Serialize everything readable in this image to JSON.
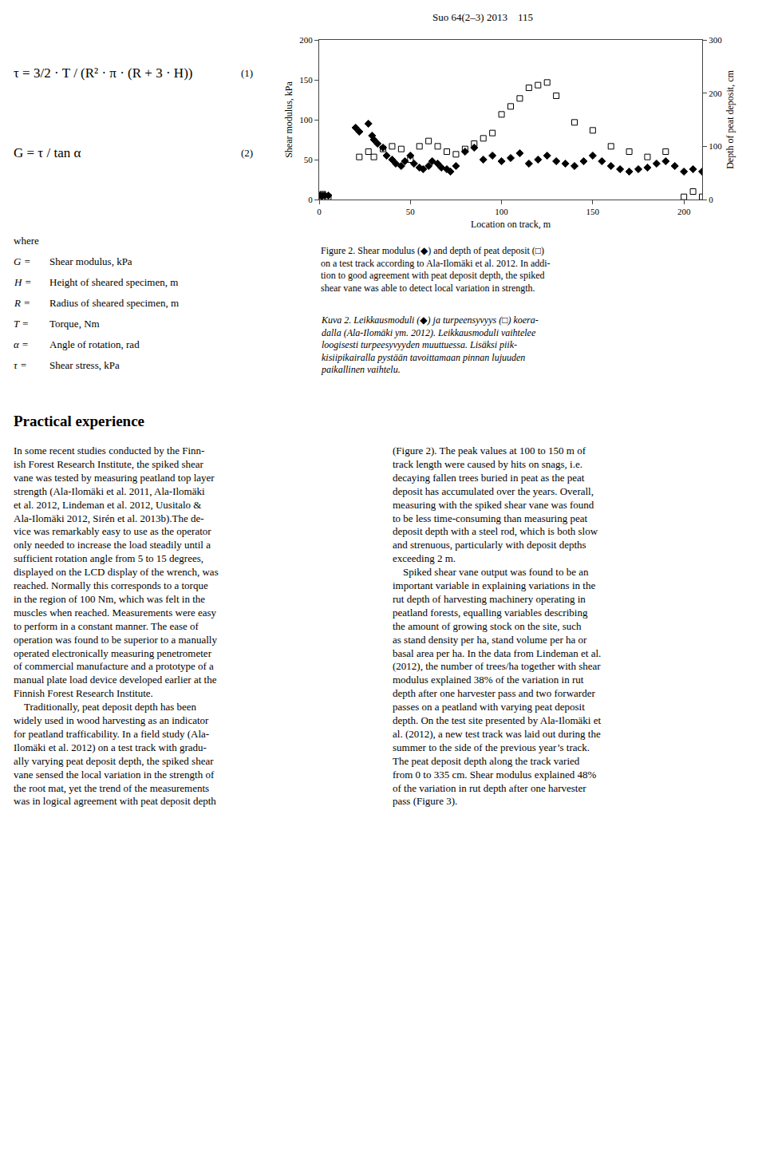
{
  "chart_data": {
    "type": "scatter",
    "xlabel": "Location on track, m",
    "ylabel": "Shear modulus, kPa",
    "y2label": "Depth of peat deposit, cm",
    "xlim": [
      0,
      210
    ],
    "ylim": [
      0,
      200
    ],
    "y2lim": [
      0,
      300
    ],
    "xticks": [
      0,
      50,
      100,
      150,
      200
    ],
    "yticks": [
      0,
      50,
      100,
      150,
      200
    ],
    "y2ticks": [
      0,
      100,
      200,
      300
    ],
    "grid": false,
    "series": [
      {
        "x": [
          0,
          1,
          2,
          3,
          5,
          20,
          22,
          27,
          29,
          30,
          32,
          35,
          37,
          40,
          42,
          45,
          47,
          50,
          52,
          55,
          57,
          60,
          62,
          65,
          67,
          70,
          72,
          75,
          80,
          85,
          90,
          95,
          100,
          105,
          110,
          115,
          120,
          125,
          130,
          135,
          140,
          145,
          150,
          155,
          160,
          165,
          170,
          175,
          180,
          185,
          190,
          195,
          200,
          205,
          210
        ],
        "values": [
          5,
          5,
          5,
          5,
          5,
          90,
          85,
          95,
          80,
          75,
          70,
          65,
          55,
          50,
          45,
          42,
          48,
          55,
          45,
          40,
          38,
          42,
          48,
          45,
          40,
          38,
          35,
          42,
          60,
          65,
          50,
          55,
          48,
          52,
          58,
          45,
          50,
          55,
          48,
          45,
          42,
          48,
          55,
          48,
          42,
          38,
          35,
          38,
          40,
          45,
          48,
          42,
          35,
          38,
          35
        ],
        "color": "#000000",
        "marker": "diamond"
      },
      {
        "x": [
          0,
          2,
          5,
          22,
          27,
          30,
          35,
          40,
          45,
          50,
          55,
          60,
          65,
          70,
          75,
          80,
          85,
          90,
          95,
          100,
          105,
          110,
          115,
          120,
          125,
          130,
          140,
          150,
          160,
          170,
          180,
          190,
          200,
          205,
          210
        ],
        "values": [
          5,
          10,
          5,
          80,
          90,
          80,
          95,
          100,
          95,
          75,
          100,
          110,
          100,
          90,
          85,
          95,
          105,
          115,
          125,
          160,
          175,
          190,
          210,
          215,
          220,
          195,
          145,
          130,
          100,
          90,
          80,
          90,
          5,
          15,
          5
        ],
        "color": "#000000",
        "marker": "square-open",
        "axis": "y2"
      }
    ]
  },
  "page": {
    "header": "Suo 64(2–3) 2013    115",
    "equations": [
      {
        "formula": "τ = 3/2 · T / (R² · π · (R + 3 · H))",
        "label": "(1)"
      },
      {
        "formula": "G = τ / tan α",
        "label": "(2)"
      }
    ],
    "where": "where",
    "variables": [
      [
        "G =",
        "Shear modulus, kPa"
      ],
      [
        "H =",
        "Height of sheared specimen, m"
      ],
      [
        "R =",
        "Radius of sheared specimen, m"
      ],
      [
        "T =",
        "Torque, Nm"
      ],
      [
        "α =",
        "Angle of rotation, rad"
      ],
      [
        "τ =",
        "Shear stress, kPa"
      ]
    ],
    "caption_en": [
      "Figure 2. Shear modulus (◆) and depth of peat deposit (□)",
      "on a test track according to Ala-Ilomäki et al. 2012. In addi-",
      "tion to good agreement with peat deposit depth, the spiked",
      "shear vane was able to detect local variation in strength."
    ],
    "caption_fi": [
      "Kuva 2. Leikkausmoduli (◆) ja turpeensyvyys (□) koera-",
      "dalla (Ala-Ilomäki ym. 2012). Leikkausmoduli vaihtelee",
      "loogisesti turpeesyvyyden muuttuessa. Lisäksi piik-",
      "kisiipikairalla pystään tavoittamaan pinnan lujuuden",
      "paikallinen vaihtelu."
    ],
    "section_title": "Practical experience",
    "body_left": [
      "In some recent studies conducted by the Finn-",
      "ish Forest Research Institute, the spiked shear",
      "vane was tested by measuring peatland top layer",
      "strength (Ala-Ilomäki et al. 2011, Ala-Ilomäki",
      "et al. 2012, Lindeman et al. 2012, Uusitalo &",
      "Ala-Ilomäki 2012, Sirén et al. 2013b).The de-",
      "vice was remarkably easy to use as the operator",
      "only needed to increase the load steadily until a",
      "sufficient rotation angle from 5 to 15 degrees,",
      "displayed on the LCD display of the wrench, was",
      "reached. Normally this corresponds to a torque",
      "in the region of 100 Nm, which was felt in the",
      "muscles when reached. Measurements were easy",
      "to perform in a constant manner. The ease of",
      "operation was found to be superior to a manually",
      "operated electronically measuring penetrometer",
      "of commercial manufacture and a prototype of a",
      "manual plate load device developed earlier at the",
      "Finnish Forest Research Institute.",
      "    Traditionally, peat deposit depth has been",
      "widely used in wood harvesting as an indicator",
      "for peatland trafficability. In a field study (Ala-",
      "Ilomäki et al. 2012) on a test track with gradu-",
      "ally varying peat deposit depth, the spiked shear",
      "vane sensed the local variation in the strength of",
      "the root mat, yet the trend of the measurements",
      "was in logical agreement with peat deposit depth"
    ],
    "body_right": [
      "(Figure 2). The peak values at 100 to 150 m of",
      "track length were caused by hits on snags, i.e.",
      "decaying fallen trees buried in peat as the peat",
      "deposit has accumulated over the years. Overall,",
      "measuring with the spiked shear vane was found",
      "to be less time-consuming than measuring peat",
      "deposit depth with a steel rod, which is both slow",
      "and strenuous, particularly with deposit depths",
      "exceeding 2 m.",
      "    Spiked shear vane output was found to be an",
      "important variable in explaining variations in the",
      "rut depth of harvesting machinery operating in",
      "peatland forests, equalling variables describing",
      "the amount of growing stock on the site, such",
      "as stand density per ha, stand volume per ha or",
      "basal area per ha. In the data from Lindeman et al.",
      "(2012), the number of trees/ha together with shear",
      "modulus explained 38% of the variation in rut",
      "depth after one harvester pass and two forwarder",
      "passes on a peatland with varying peat deposit",
      "depth. On the test site presented by Ala-Ilomäki et",
      "al. (2012), a new test track was laid out during the",
      "summer to the side of the previous year’s track.",
      "The peat deposit depth along the track varied",
      "from 0 to 335 cm. Shear modulus explained 48%",
      "of the variation in rut depth after one harvester",
      "pass (Figure 3)."
    ]
  }
}
